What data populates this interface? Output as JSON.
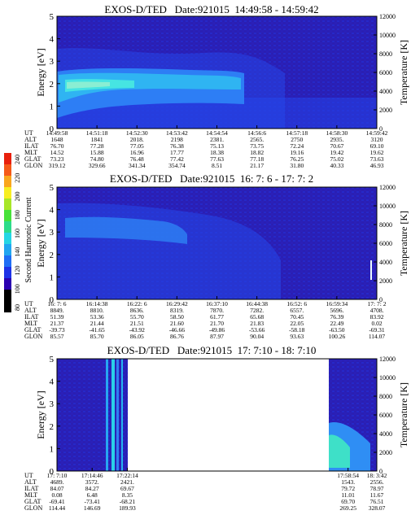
{
  "colorbar": {
    "label": "Second Harmonic Current",
    "ticks": [
      "80",
      "100",
      "120",
      "140",
      "160",
      "180",
      "200",
      "220",
      "240"
    ],
    "colors": [
      "#000000",
      "#2a00b0",
      "#1e32e6",
      "#1f6ef5",
      "#21a6f0",
      "#25d6e4",
      "#2ddc8a",
      "#47e23a",
      "#a8e629",
      "#f7ee23",
      "#f9a61d",
      "#f55a18",
      "#e8200c"
    ]
  },
  "chart_data": [
    {
      "type": "heatmap",
      "title": "EXOS-D/TED   Date:921015  14:49:58 - 14:59:42",
      "ylabel": "Energy [eV]",
      "y2label": "Temperature [K]",
      "ylim": [
        0,
        5
      ],
      "y2lim": [
        0,
        12000
      ],
      "yticks": [
        "0",
        "1",
        "2",
        "3",
        "4",
        "5"
      ],
      "y2ticks": [
        "0",
        "2000",
        "4000",
        "6000",
        "8000",
        "10000",
        "12000"
      ],
      "row_labels": [
        "UT",
        "ALT",
        "ILAT",
        "MLT",
        "GLAT",
        "GLON"
      ],
      "columns": [
        [
          "14:49:58",
          "1648",
          "76.70",
          "14.52",
          "73.23",
          "319.12"
        ],
        [
          "14:51:18",
          "1841",
          "77.28",
          "15.88",
          "74.80",
          "329.66"
        ],
        [
          "14:52:30",
          "2018.",
          "77.05",
          "16.96",
          "76.48",
          "341.34"
        ],
        [
          "14:53:42",
          "2198",
          "76.38",
          "17.77",
          "77.42",
          "354.74"
        ],
        [
          "14:54:54",
          "2381.",
          "75.13",
          "18.38",
          "77.63",
          "8.51"
        ],
        [
          "14:56:6",
          "2565.",
          "73.75",
          "18.82",
          "77.18",
          "21.17"
        ],
        [
          "14:57:18",
          "2750",
          "72.24",
          "19.16",
          "76.25",
          "31.80"
        ],
        [
          "14:58:30",
          "2935.",
          "70.67",
          "19.42",
          "75.02",
          "40.33"
        ],
        [
          "14:59:42",
          "3120",
          "69.10",
          "19.62",
          "73.63",
          "46.93"
        ]
      ],
      "gap": []
    },
    {
      "type": "heatmap",
      "title": "EXOS-D/TED   Date:921015  16: 7: 6 - 17: 7: 2",
      "ylabel": "Energy [eV]",
      "y2label": "Temperature [K]",
      "ylim": [
        0,
        5
      ],
      "y2lim": [
        0,
        12000
      ],
      "yticks": [
        "0",
        "1",
        "2",
        "3",
        "4",
        "5"
      ],
      "y2ticks": [
        "0",
        "2000",
        "4000",
        "6000",
        "8000",
        "10000",
        "12000"
      ],
      "row_labels": [
        "UT",
        "ALT",
        "ILAT",
        "MLT",
        "GLAT",
        "GLON"
      ],
      "columns": [
        [
          "16: 7: 6",
          "8849.",
          "51.39",
          "21.37",
          "-39.73",
          "85.57"
        ],
        [
          "16:14:38",
          "8810.",
          "53.36",
          "21.44",
          "-41.65",
          "85.70"
        ],
        [
          "16:22: 6",
          "8636.",
          "55.70",
          "21.51",
          "-43.92",
          "86.05"
        ],
        [
          "16:29:42",
          "8319.",
          "58.50",
          "21.60",
          "-46.66",
          "86.76"
        ],
        [
          "16:37:10",
          "7870.",
          "61.77",
          "21.70",
          "-49.86",
          "87.97"
        ],
        [
          "16:44:38",
          "7282.",
          "65.68",
          "21.83",
          "-53.66",
          "90.04"
        ],
        [
          "16:52: 6",
          "6557.",
          "70.45",
          "22.05",
          "-58.18",
          "93.63"
        ],
        [
          "16:59:34",
          "5696.",
          "76.39",
          "22.49",
          "-63.50",
          "100.26"
        ],
        [
          "17: 7: 2",
          "4708.",
          "83.92",
          "0.02",
          "-69.31",
          "114.07"
        ]
      ],
      "gap": []
    },
    {
      "type": "heatmap",
      "title": "EXOS-D/TED   Date:921015  17: 7:10 - 18: 7:10",
      "ylabel": "Energy [eV]",
      "y2label": "Temperature [K]",
      "ylim": [
        0,
        5
      ],
      "y2lim": [
        0,
        12000
      ],
      "yticks": [
        "0",
        "1",
        "2",
        "3",
        "4",
        "5"
      ],
      "y2ticks": [
        "0",
        "2000",
        "4000",
        "6000",
        "8000",
        "10000",
        "12000"
      ],
      "row_labels": [
        "UT",
        "ALT",
        "ILAT",
        "MLT",
        "GLAT",
        "GLON"
      ],
      "columns": [
        [
          "17: 7:10",
          "4689.",
          "84.07",
          "0.08",
          "-69.41",
          "114.44"
        ],
        [
          "17:14:46",
          "3572.",
          "84.27",
          "6.48",
          "-73.41",
          "146.69"
        ],
        [
          "17:22:14",
          "2421.",
          "69.67",
          "8.35",
          "-68.21",
          "189.93"
        ],
        [
          "17:58:54",
          "1543.",
          "79.72",
          "11.01",
          "69.70",
          "269.25"
        ],
        [
          "18: 3:42",
          "2556.",
          "78.97",
          "11.67",
          "76.51",
          "328.07"
        ]
      ],
      "gap": [
        0.22,
        0.91
      ]
    }
  ]
}
